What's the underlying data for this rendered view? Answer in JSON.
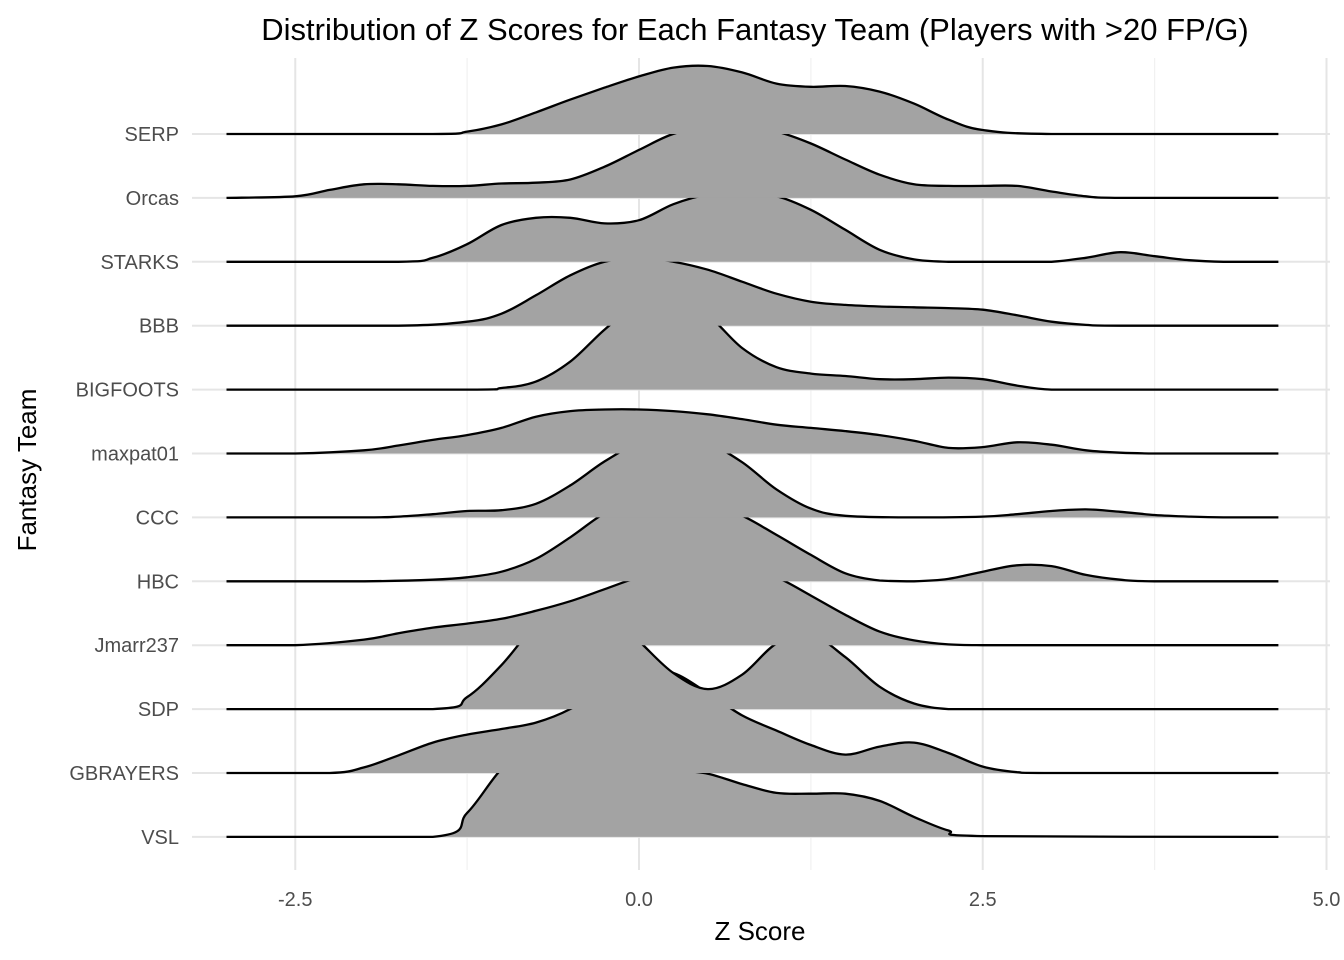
{
  "chart_data": {
    "type": "ridgeline",
    "title": "Distribution of Z Scores for Each Fantasy Team (Players with >20 FP/G)",
    "xlabel": "Z Score",
    "ylabel": "Fantasy Team",
    "xlim": [
      -3.0,
      4.65
    ],
    "x_ticks": [
      -2.5,
      0.0,
      2.5,
      5.0
    ],
    "x_tick_labels": [
      "-2.5",
      "0.0",
      "2.5",
      "5.0"
    ],
    "grid": true,
    "fill_color": "#a3a3a3",
    "line_color": "#000000",
    "categories": [
      "SERP",
      "Orcas",
      "STARKS",
      "BBB",
      "BIGFOOTS",
      "maxpat01",
      "CCC",
      "HBC",
      "Jmarr237",
      "SDP",
      "GBRAYERS",
      "VSL"
    ],
    "series": [
      {
        "name": "SERP",
        "x": [
          -3.0,
          -1.5,
          -1.25,
          -1.0,
          -0.75,
          -0.5,
          -0.25,
          0.0,
          0.25,
          0.5,
          0.75,
          1.0,
          1.25,
          1.5,
          1.75,
          2.0,
          2.25,
          2.5,
          3.0,
          4.65
        ],
        "density": [
          0.0,
          0.0,
          0.03,
          0.12,
          0.27,
          0.43,
          0.58,
          0.72,
          0.83,
          0.85,
          0.77,
          0.63,
          0.59,
          0.6,
          0.53,
          0.38,
          0.18,
          0.05,
          0.0,
          0.0
        ]
      },
      {
        "name": "Orcas",
        "x": [
          -3.0,
          -2.5,
          -2.25,
          -2.0,
          -1.75,
          -1.5,
          -1.25,
          -1.0,
          -0.75,
          -0.5,
          -0.25,
          0.0,
          0.25,
          0.5,
          0.75,
          1.0,
          1.25,
          1.5,
          1.75,
          2.0,
          2.25,
          2.5,
          2.75,
          3.0,
          3.25,
          3.5,
          4.65
        ],
        "density": [
          0.0,
          0.02,
          0.1,
          0.17,
          0.17,
          0.15,
          0.15,
          0.18,
          0.19,
          0.23,
          0.39,
          0.6,
          0.8,
          0.88,
          0.9,
          0.83,
          0.68,
          0.48,
          0.29,
          0.17,
          0.15,
          0.15,
          0.15,
          0.08,
          0.02,
          0.0,
          0.0
        ]
      },
      {
        "name": "STARKS",
        "x": [
          -3.0,
          -1.75,
          -1.5,
          -1.25,
          -1.0,
          -0.75,
          -0.5,
          -0.25,
          0.0,
          0.25,
          0.5,
          0.75,
          1.0,
          1.25,
          1.5,
          1.75,
          2.0,
          2.25,
          2.5,
          2.75,
          3.0,
          3.25,
          3.5,
          3.75,
          4.0,
          4.25,
          4.65
        ],
        "density": [
          0.0,
          0.0,
          0.05,
          0.22,
          0.46,
          0.55,
          0.55,
          0.48,
          0.52,
          0.72,
          0.84,
          0.85,
          0.82,
          0.65,
          0.4,
          0.15,
          0.03,
          0.0,
          0.0,
          0.0,
          0.0,
          0.05,
          0.12,
          0.07,
          0.02,
          0.0,
          0.0
        ]
      },
      {
        "name": "BBB",
        "x": [
          -3.0,
          -1.75,
          -1.25,
          -1.0,
          -0.75,
          -0.5,
          -0.25,
          0.0,
          0.25,
          0.5,
          0.75,
          1.0,
          1.25,
          1.5,
          1.75,
          2.0,
          2.25,
          2.5,
          2.75,
          3.0,
          3.25,
          3.5,
          4.65
        ],
        "density": [
          0.0,
          0.0,
          0.05,
          0.15,
          0.38,
          0.63,
          0.8,
          0.85,
          0.8,
          0.7,
          0.55,
          0.4,
          0.3,
          0.26,
          0.24,
          0.23,
          0.22,
          0.2,
          0.13,
          0.05,
          0.01,
          0.0,
          0.0
        ]
      },
      {
        "name": "BIGFOOTS",
        "x": [
          -3.0,
          -1.25,
          -1.0,
          -0.75,
          -0.5,
          -0.25,
          0.0,
          0.25,
          0.5,
          0.75,
          1.0,
          1.25,
          1.5,
          1.75,
          2.0,
          2.25,
          2.5,
          2.75,
          3.0,
          3.5,
          4.65
        ],
        "density": [
          0.0,
          0.0,
          0.02,
          0.1,
          0.35,
          0.75,
          1.08,
          1.15,
          0.93,
          0.52,
          0.28,
          0.2,
          0.17,
          0.13,
          0.13,
          0.15,
          0.13,
          0.05,
          0.0,
          0.0,
          0.0
        ]
      },
      {
        "name": "maxpat01",
        "x": [
          -3.0,
          -2.5,
          -2.0,
          -1.75,
          -1.5,
          -1.25,
          -1.0,
          -0.75,
          -0.5,
          -0.25,
          0.0,
          0.25,
          0.5,
          0.75,
          1.0,
          1.25,
          1.5,
          1.75,
          2.0,
          2.25,
          2.5,
          2.75,
          3.0,
          3.25,
          3.5,
          3.75,
          4.0,
          4.65
        ],
        "density": [
          0.0,
          0.0,
          0.04,
          0.1,
          0.17,
          0.23,
          0.32,
          0.46,
          0.53,
          0.55,
          0.55,
          0.53,
          0.49,
          0.43,
          0.36,
          0.32,
          0.28,
          0.23,
          0.16,
          0.07,
          0.08,
          0.14,
          0.11,
          0.04,
          0.01,
          0.0,
          0.0,
          0.0
        ]
      },
      {
        "name": "CCC",
        "x": [
          -3.0,
          -2.0,
          -1.75,
          -1.5,
          -1.25,
          -1.0,
          -0.75,
          -0.5,
          -0.25,
          0.0,
          0.25,
          0.5,
          0.75,
          1.0,
          1.25,
          1.5,
          2.0,
          2.5,
          2.75,
          3.0,
          3.25,
          3.5,
          3.75,
          4.0,
          4.25,
          4.65
        ],
        "density": [
          0.0,
          0.0,
          0.01,
          0.04,
          0.08,
          0.09,
          0.17,
          0.4,
          0.7,
          0.93,
          1.0,
          0.93,
          0.69,
          0.35,
          0.11,
          0.02,
          0.0,
          0.01,
          0.04,
          0.08,
          0.1,
          0.07,
          0.03,
          0.01,
          0.0,
          0.0
        ]
      },
      {
        "name": "HBC",
        "x": [
          -3.0,
          -2.0,
          -1.5,
          -1.25,
          -1.0,
          -0.75,
          -0.5,
          -0.25,
          0.0,
          0.25,
          0.5,
          0.75,
          1.0,
          1.25,
          1.5,
          1.75,
          2.0,
          2.25,
          2.5,
          2.75,
          3.0,
          3.25,
          3.5,
          3.75,
          4.65
        ],
        "density": [
          0.0,
          0.0,
          0.02,
          0.05,
          0.12,
          0.28,
          0.55,
          0.85,
          1.03,
          1.05,
          0.97,
          0.82,
          0.58,
          0.33,
          0.1,
          0.01,
          0.0,
          0.03,
          0.12,
          0.2,
          0.19,
          0.08,
          0.02,
          0.0,
          0.0
        ]
      },
      {
        "name": "Jmarr237",
        "x": [
          -3.0,
          -2.5,
          -2.0,
          -1.75,
          -1.5,
          -1.25,
          -1.0,
          -0.75,
          -0.5,
          -0.25,
          0.0,
          0.25,
          0.5,
          0.75,
          1.0,
          1.25,
          1.5,
          1.75,
          2.0,
          2.25,
          2.5,
          2.75,
          4.65
        ],
        "density": [
          0.0,
          0.0,
          0.07,
          0.15,
          0.22,
          0.27,
          0.33,
          0.43,
          0.55,
          0.7,
          0.85,
          0.95,
          1.0,
          0.98,
          0.85,
          0.62,
          0.38,
          0.17,
          0.06,
          0.01,
          0.0,
          0.0,
          0.0
        ]
      },
      {
        "name": "SDP",
        "x": [
          -3.0,
          -1.5,
          -1.25,
          -1.0,
          -0.75,
          -0.5,
          -0.25,
          0.0,
          0.25,
          0.5,
          0.75,
          1.0,
          1.25,
          1.5,
          1.75,
          2.0,
          2.25,
          2.5,
          4.65
        ],
        "density": [
          0.0,
          0.0,
          0.15,
          0.55,
          1.05,
          1.3,
          1.25,
          0.85,
          0.45,
          0.25,
          0.43,
          0.82,
          0.93,
          0.65,
          0.28,
          0.07,
          0.0,
          0.0,
          0.0
        ]
      },
      {
        "name": "GBRAYERS",
        "x": [
          -3.0,
          -2.25,
          -2.0,
          -1.75,
          -1.5,
          -1.25,
          -1.0,
          -0.75,
          -0.5,
          -0.25,
          0.0,
          0.25,
          0.5,
          0.75,
          1.0,
          1.25,
          1.5,
          1.75,
          2.0,
          2.25,
          2.5,
          2.75,
          3.0,
          4.65
        ],
        "density": [
          0.0,
          0.0,
          0.07,
          0.22,
          0.38,
          0.48,
          0.55,
          0.63,
          0.8,
          1.08,
          1.3,
          1.25,
          1.0,
          0.72,
          0.53,
          0.35,
          0.23,
          0.33,
          0.38,
          0.25,
          0.08,
          0.01,
          0.0,
          0.0
        ]
      },
      {
        "name": "VSL",
        "x": [
          -3.0,
          -1.5,
          -1.25,
          -1.0,
          -0.75,
          -0.5,
          -0.25,
          0.0,
          0.25,
          0.5,
          0.75,
          1.0,
          1.25,
          1.5,
          1.75,
          2.0,
          2.25,
          2.5,
          4.65
        ],
        "density": [
          0.0,
          0.0,
          0.3,
          0.85,
          1.2,
          1.25,
          1.1,
          0.88,
          0.84,
          0.79,
          0.66,
          0.55,
          0.54,
          0.54,
          0.45,
          0.25,
          0.08,
          0.01,
          0.0
        ]
      }
    ]
  }
}
